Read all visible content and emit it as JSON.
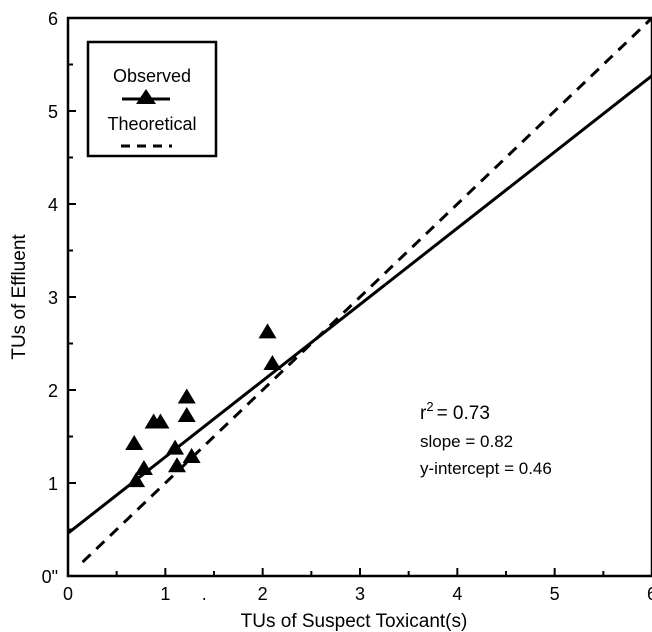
{
  "chart_data": {
    "type": "scatter",
    "title": "",
    "xlabel": "TUs of Suspect Toxicant(s)",
    "ylabel": "TUs of Effluent",
    "xlim": [
      0,
      6
    ],
    "ylim": [
      0,
      6
    ],
    "x_tick_labels": [
      "0",
      "1",
      ".",
      "2",
      "3",
      "4",
      "5",
      "6"
    ],
    "y_tick_labels": [
      "0\"",
      "1",
      "2",
      "3",
      "4",
      "5",
      "6"
    ],
    "grid": false,
    "legend_position": "top-left",
    "series": [
      {
        "name": "Observed",
        "marker": "triangle",
        "points": [
          [
            0.68,
            1.42
          ],
          [
            0.7,
            1.02
          ],
          [
            0.78,
            1.15
          ],
          [
            0.88,
            1.65
          ],
          [
            0.95,
            1.65
          ],
          [
            1.1,
            1.37
          ],
          [
            1.12,
            1.18
          ],
          [
            1.22,
            1.92
          ],
          [
            1.22,
            1.72
          ],
          [
            1.27,
            1.28
          ],
          [
            2.05,
            2.62
          ],
          [
            2.1,
            2.28
          ]
        ]
      }
    ],
    "lines": [
      {
        "name": "Observed",
        "style": "solid",
        "slope": 0.82,
        "intercept": 0.46,
        "x_range": [
          0,
          6
        ]
      },
      {
        "name": "Theoretical",
        "style": "dashed",
        "slope": 1.0,
        "intercept": 0.0,
        "x_range": [
          0.15,
          6
        ]
      }
    ],
    "annotations": {
      "r2_prefix": "r",
      "r2_exponent": "2",
      "r2_value": "= 0.73",
      "slope": "slope = 0.82",
      "intercept": "y-intercept = 0.46"
    }
  }
}
